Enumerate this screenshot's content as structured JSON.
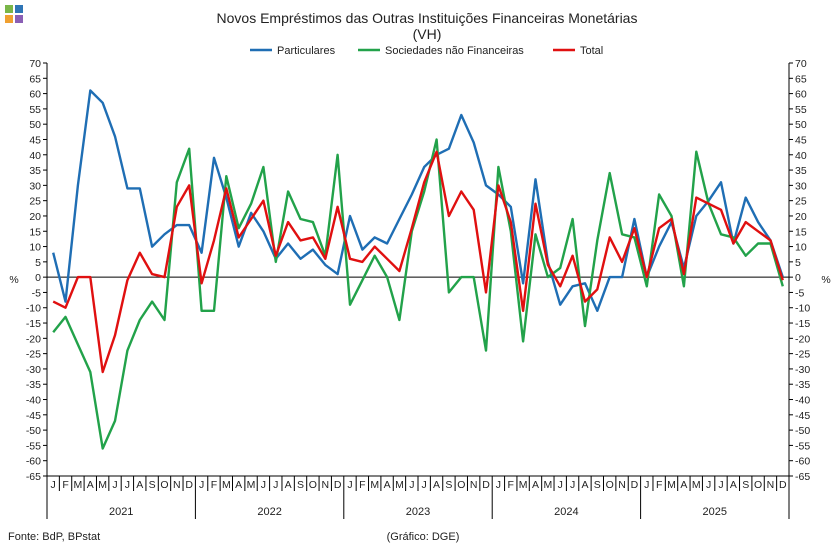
{
  "logo": {
    "colors": [
      "#7ab648",
      "#2e75b6",
      "#f0a030",
      "#8a5fb5"
    ],
    "name": "bpstat-logo"
  },
  "chart_data": {
    "type": "line",
    "title": "Novos Empréstimos das Outras Instituições Financeiras Monetárias",
    "subtitle": "(VH)",
    "ylabel_left": "%",
    "ylabel_right": "%",
    "ylim": [
      -65,
      70
    ],
    "yticks": [
      70,
      65,
      60,
      55,
      50,
      45,
      40,
      35,
      30,
      25,
      20,
      15,
      10,
      5,
      0,
      -5,
      -10,
      -15,
      -20,
      -25,
      -30,
      -35,
      -40,
      -45,
      -50,
      -55,
      -60,
      -65
    ],
    "month_labels": [
      "J",
      "F",
      "M",
      "A",
      "M",
      "J",
      "J",
      "A",
      "S",
      "O",
      "N",
      "D"
    ],
    "years": [
      "2021",
      "2022",
      "2023",
      "2024",
      "2025"
    ],
    "grid": false,
    "legend_position": "top-center",
    "series": [
      {
        "name": "Particulares",
        "color": "#1f6eb4",
        "values": [
          8,
          -8,
          30,
          61,
          57,
          46,
          29,
          29,
          10,
          14,
          17,
          17,
          8,
          39,
          26,
          10,
          21,
          15,
          6,
          11,
          6,
          9,
          4,
          1,
          20,
          9,
          13,
          11,
          19,
          27,
          36,
          40,
          42,
          53,
          44,
          30,
          27,
          23,
          -2,
          32,
          5,
          -9,
          -3,
          -2,
          -11,
          0,
          0,
          19,
          0,
          10,
          18,
          3,
          20,
          25,
          31,
          11,
          26,
          18,
          12,
          0
        ]
      },
      {
        "name": "Sociedades não Financeiras",
        "color": "#22a24a",
        "values": [
          -18,
          -13,
          -22,
          -31,
          -56,
          -47,
          -24,
          -14,
          -8,
          -14,
          31,
          42,
          -11,
          -11,
          33,
          16,
          24,
          36,
          5,
          28,
          19,
          18,
          7,
          40,
          -9,
          -1,
          7,
          0,
          -14,
          15,
          28,
          45,
          -5,
          0,
          0,
          -24,
          36,
          15,
          -21,
          14,
          0,
          3,
          19,
          -16,
          12,
          34,
          14,
          13,
          -3,
          27,
          20,
          -3,
          41,
          24,
          14,
          13,
          7,
          11,
          11,
          -3
        ]
      },
      {
        "name": "Total",
        "color": "#e01010",
        "values": [
          -8,
          -10,
          0,
          0,
          -31,
          -19,
          -1,
          8,
          1,
          0,
          23,
          30,
          -2,
          12,
          29,
          13,
          19,
          25,
          7,
          18,
          12,
          13,
          6,
          23,
          6,
          5,
          10,
          6,
          2,
          16,
          31,
          41,
          20,
          28,
          22,
          -5,
          30,
          18,
          -11,
          24,
          4,
          -3,
          7,
          -8,
          -4,
          13,
          5,
          16,
          0,
          16,
          19,
          1,
          26,
          24,
          22,
          11,
          18,
          15,
          12,
          -1
        ]
      }
    ]
  },
  "footer": {
    "source": "Fonte: BdP, BPstat",
    "credit": "(Gráfico: DGE)"
  }
}
